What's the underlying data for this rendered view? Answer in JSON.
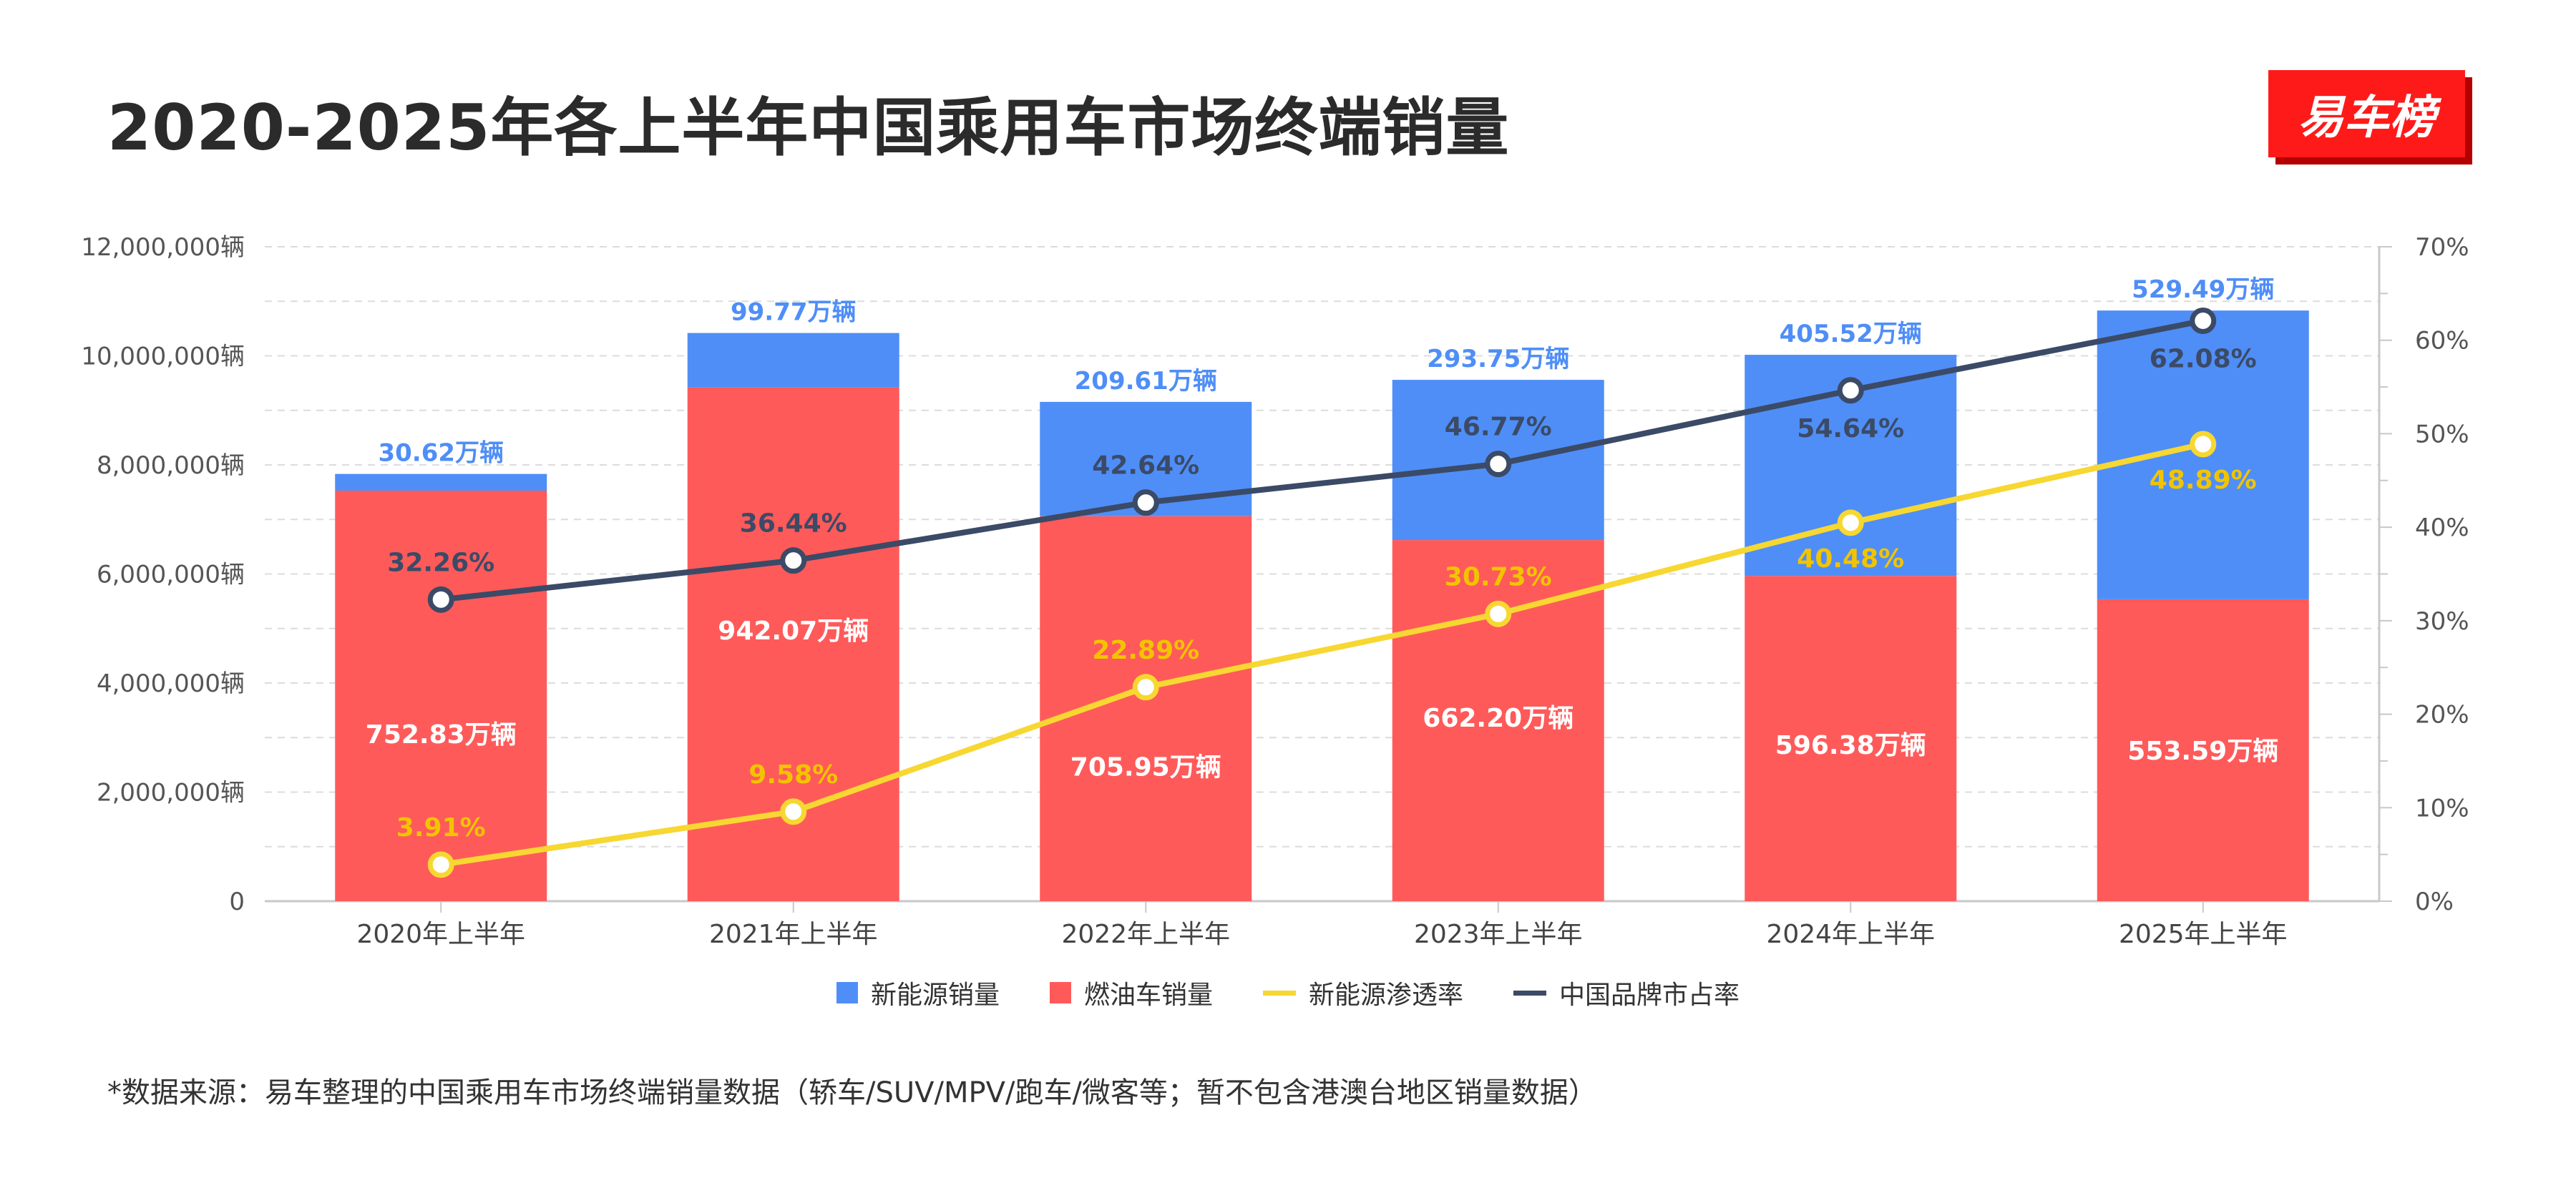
{
  "title": "2020-2025年各上半年中国乘用车市场终端销量",
  "logo_text": "易车榜",
  "footnote": "*数据来源：易车整理的中国乘用车市场终端销量数据（轿车/SUV/MPV/跑车/微客等；暂不包含港澳台地区销量数据）",
  "colors": {
    "nev": "#4f8ef7",
    "ice": "#ff5a5a",
    "penetration": "#f7d731",
    "share": "#3b4a66",
    "nev_label": "#4f8ef7",
    "pen_label": "#f2c400",
    "share_label": "#3b4a66"
  },
  "chart_data": {
    "type": "bar",
    "stacked": true,
    "categories": [
      "2020年上半年",
      "2021年上半年",
      "2022年上半年",
      "2023年上半年",
      "2024年上半年",
      "2025年上半年"
    ],
    "series": [
      {
        "name": "新能源销量",
        "type": "bar",
        "axis": "left",
        "values": [
          306200,
          997700,
          2096100,
          2937500,
          4055200,
          5294900
        ],
        "labels": [
          "30.62万辆",
          "99.77万辆",
          "209.61万辆",
          "293.75万辆",
          "405.52万辆",
          "529.49万辆"
        ]
      },
      {
        "name": "燃油车销量",
        "type": "bar",
        "axis": "left",
        "values": [
          7528300,
          9420700,
          7059500,
          6622000,
          5963800,
          5535900
        ],
        "labels": [
          "752.83万辆",
          "942.07万辆",
          "705.95万辆",
          "662.20万辆",
          "596.38万辆",
          "553.59万辆"
        ]
      },
      {
        "name": "新能源渗透率",
        "type": "line",
        "axis": "right",
        "values": [
          3.91,
          9.58,
          22.89,
          30.73,
          40.48,
          48.89
        ],
        "labels": [
          "3.91%",
          "9.58%",
          "22.89%",
          "30.73%",
          "40.48%",
          "48.89%"
        ]
      },
      {
        "name": "中国品牌市占率",
        "type": "line",
        "axis": "right",
        "values": [
          32.26,
          36.44,
          42.64,
          46.77,
          54.64,
          62.08
        ],
        "labels": [
          "32.26%",
          "36.44%",
          "42.64%",
          "46.77%",
          "54.64%",
          "62.08%"
        ]
      }
    ],
    "y_left": {
      "ylim": [
        0,
        12000000
      ],
      "ticks": [
        "0",
        "2,000,000辆",
        "4,000,000辆",
        "6,000,000辆",
        "8,000,000辆",
        "10,000,000辆",
        "12,000,000辆"
      ]
    },
    "y_right": {
      "ylim": [
        0,
        70
      ],
      "ticks": [
        "0%",
        "10%",
        "20%",
        "30%",
        "40%",
        "50%",
        "60%",
        "70%"
      ]
    },
    "grid": true,
    "legend_position": "bottom"
  }
}
